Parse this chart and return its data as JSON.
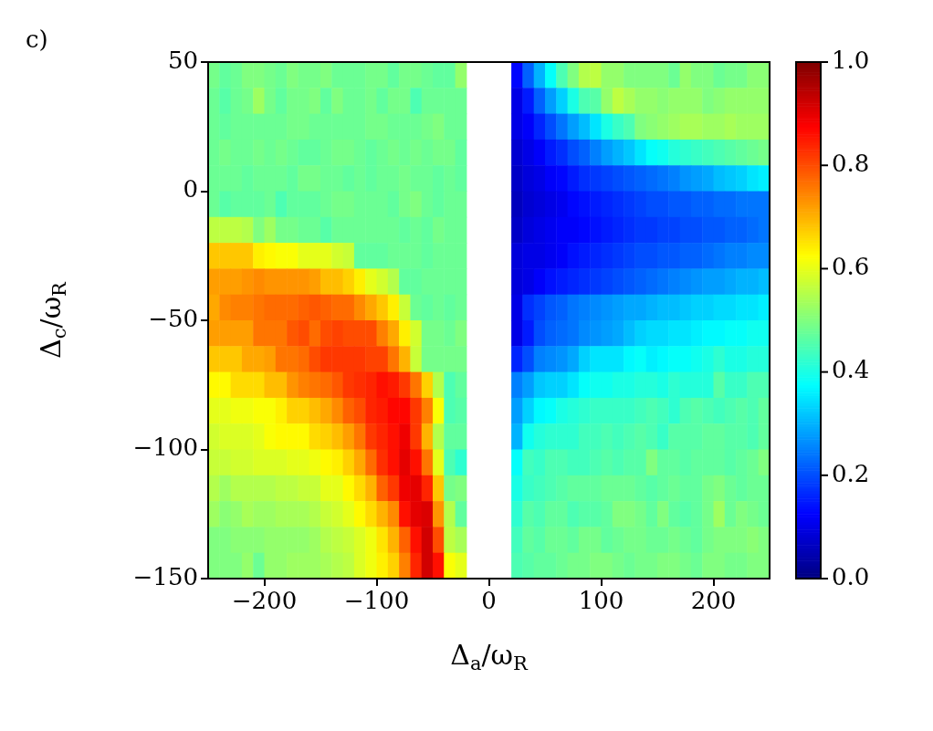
{
  "chart_data": {
    "type": "heatmap",
    "annotations": [
      "c)"
    ],
    "xlabel": "Δ$_{a}$/ω$_{R}$",
    "ylabel": "Δ$_{c}$/ω$_{R}$",
    "x": [
      -245,
      -235,
      -225,
      -215,
      -205,
      -195,
      -185,
      -175,
      -165,
      -155,
      -145,
      -135,
      -125,
      -115,
      -105,
      -95,
      -85,
      -75,
      -65,
      -55,
      -45,
      -35,
      -25,
      -15,
      -5,
      5,
      15,
      25,
      35,
      45,
      55,
      65,
      75,
      85,
      95,
      105,
      115,
      125,
      135,
      145,
      155,
      165,
      175,
      185,
      195,
      205,
      215,
      225,
      235,
      245
    ],
    "y": [
      45,
      35,
      25,
      15,
      5,
      -5,
      -15,
      -25,
      -35,
      -45,
      -55,
      -65,
      -75,
      -85,
      -95,
      -105,
      -115,
      -125,
      -135,
      -145
    ],
    "xlim": [
      -250,
      250
    ],
    "ylim": [
      -150,
      50
    ],
    "xticks": [
      {
        "value": -200,
        "label": "−200"
      },
      {
        "value": -100,
        "label": "−100"
      },
      0,
      100,
      200
    ],
    "yticks": [
      {
        "value": -150,
        "label": "−150"
      },
      {
        "value": -100,
        "label": "−100"
      },
      {
        "value": -50,
        "label": "−50"
      },
      0,
      50
    ],
    "clim": [
      0,
      1
    ],
    "cticks": [
      {
        "value": 0,
        "label": "0.0"
      },
      0.2,
      0.4,
      0.6,
      0.8,
      {
        "value": 1,
        "label": "1.0"
      }
    ],
    "cells": [
      [
        0.49,
        0.47,
        0.48,
        0.5,
        0.5,
        0.49,
        0.48,
        0.5,
        0.49,
        0.49,
        0.5,
        0.48,
        0.48,
        0.48,
        0.49,
        0.49,
        0.47,
        0.49,
        0.49,
        0.48,
        0.47,
        0.47,
        0.52,
        null,
        null,
        null,
        null,
        0.13,
        0.22,
        0.3,
        0.38,
        0.45,
        0.5,
        0.55,
        0.56,
        0.52,
        0.52,
        0.5,
        0.5,
        0.5,
        0.5,
        0.48,
        0.52,
        0.5,
        0.5,
        0.48,
        0.49,
        0.49,
        0.51,
        0.51
      ],
      [
        0.48,
        0.46,
        0.48,
        0.49,
        0.53,
        0.49,
        0.47,
        0.49,
        0.49,
        0.5,
        0.47,
        0.5,
        0.48,
        0.48,
        0.49,
        0.47,
        0.49,
        0.49,
        0.45,
        0.48,
        0.48,
        0.48,
        0.48,
        null,
        null,
        null,
        null,
        0.1,
        0.15,
        0.22,
        0.28,
        0.33,
        0.4,
        0.45,
        0.46,
        0.52,
        0.56,
        0.54,
        0.52,
        0.52,
        0.51,
        0.52,
        0.52,
        0.52,
        0.5,
        0.51,
        0.52,
        0.52,
        0.52,
        0.52
      ],
      [
        0.48,
        0.47,
        0.48,
        0.48,
        0.48,
        0.48,
        0.48,
        0.49,
        0.49,
        0.48,
        0.48,
        0.48,
        0.48,
        0.48,
        0.49,
        0.49,
        0.48,
        0.48,
        0.48,
        0.49,
        0.5,
        0.48,
        0.48,
        null,
        null,
        null,
        null,
        0.1,
        0.12,
        0.16,
        0.2,
        0.24,
        0.28,
        0.31,
        0.35,
        0.4,
        0.43,
        0.45,
        0.5,
        0.51,
        0.52,
        0.53,
        0.54,
        0.54,
        0.53,
        0.53,
        0.54,
        0.53,
        0.53,
        0.53
      ],
      [
        0.48,
        0.49,
        0.48,
        0.48,
        0.49,
        0.48,
        0.49,
        0.48,
        0.47,
        0.47,
        0.48,
        0.49,
        0.49,
        0.48,
        0.47,
        0.48,
        0.49,
        0.48,
        0.49,
        0.48,
        0.49,
        0.49,
        0.47,
        null,
        null,
        null,
        null,
        0.08,
        0.1,
        0.12,
        0.15,
        0.17,
        0.2,
        0.22,
        0.25,
        0.28,
        0.3,
        0.32,
        0.35,
        0.38,
        0.39,
        0.41,
        0.42,
        0.43,
        0.44,
        0.45,
        0.46,
        0.47,
        0.48,
        0.49
      ],
      [
        0.48,
        0.48,
        0.48,
        0.47,
        0.48,
        0.48,
        0.48,
        0.47,
        0.49,
        0.49,
        0.48,
        0.48,
        0.47,
        0.48,
        0.47,
        0.48,
        0.48,
        0.49,
        0.48,
        0.48,
        0.47,
        0.48,
        0.47,
        null,
        null,
        null,
        null,
        0.07,
        0.09,
        0.1,
        0.12,
        0.13,
        0.15,
        0.17,
        0.18,
        0.19,
        0.2,
        0.21,
        0.22,
        0.23,
        0.24,
        0.25,
        0.27,
        0.28,
        0.29,
        0.31,
        0.32,
        0.33,
        0.35,
        0.36
      ],
      [
        0.48,
        0.46,
        0.47,
        0.47,
        0.47,
        0.48,
        0.45,
        0.47,
        0.47,
        0.47,
        0.48,
        0.49,
        0.49,
        0.48,
        0.48,
        0.48,
        0.47,
        0.49,
        0.5,
        0.48,
        0.47,
        0.48,
        0.48,
        null,
        null,
        null,
        null,
        0.06,
        0.08,
        0.09,
        0.1,
        0.11,
        0.13,
        0.14,
        0.15,
        0.16,
        0.17,
        0.18,
        0.19,
        0.2,
        0.2,
        0.21,
        0.21,
        0.22,
        0.22,
        0.23,
        0.23,
        0.24,
        0.24,
        0.24
      ],
      [
        0.56,
        0.56,
        0.56,
        0.55,
        0.5,
        0.53,
        0.49,
        0.49,
        0.48,
        0.48,
        0.46,
        0.48,
        0.48,
        0.48,
        0.48,
        0.48,
        0.48,
        0.47,
        0.48,
        0.47,
        0.49,
        0.48,
        0.48,
        null,
        null,
        null,
        null,
        0.07,
        0.09,
        0.1,
        0.11,
        0.12,
        0.12,
        0.13,
        0.14,
        0.15,
        0.16,
        0.17,
        0.18,
        0.18,
        0.19,
        0.19,
        0.2,
        0.2,
        0.21,
        0.21,
        0.22,
        0.22,
        0.23,
        0.24
      ],
      [
        0.68,
        0.68,
        0.68,
        0.68,
        0.64,
        0.63,
        0.62,
        0.62,
        0.6,
        0.6,
        0.6,
        0.58,
        0.57,
        0.47,
        0.47,
        0.47,
        0.48,
        0.48,
        0.48,
        0.47,
        0.48,
        0.48,
        0.48,
        null,
        null,
        null,
        null,
        0.09,
        0.1,
        0.1,
        0.11,
        0.12,
        0.14,
        0.15,
        0.16,
        0.17,
        0.18,
        0.19,
        0.2,
        0.2,
        0.21,
        0.21,
        0.22,
        0.22,
        0.23,
        0.24,
        0.25,
        0.25,
        0.26,
        0.26
      ],
      [
        0.72,
        0.72,
        0.72,
        0.73,
        0.74,
        0.73,
        0.73,
        0.73,
        0.73,
        0.72,
        0.69,
        0.69,
        0.67,
        0.64,
        0.6,
        0.58,
        0.55,
        0.47,
        0.47,
        0.48,
        0.48,
        0.48,
        0.48,
        null,
        null,
        null,
        null,
        0.09,
        0.1,
        0.12,
        0.14,
        0.15,
        0.16,
        0.17,
        0.18,
        0.19,
        0.2,
        0.21,
        0.22,
        0.23,
        0.24,
        0.25,
        0.26,
        0.27,
        0.28,
        0.28,
        0.29,
        0.3,
        0.3,
        0.31
      ],
      [
        0.71,
        0.74,
        0.75,
        0.75,
        0.76,
        0.77,
        0.77,
        0.77,
        0.78,
        0.79,
        0.78,
        0.77,
        0.77,
        0.74,
        0.71,
        0.68,
        0.64,
        0.57,
        0.48,
        0.47,
        0.48,
        0.47,
        0.48,
        null,
        null,
        null,
        null,
        0.1,
        0.17,
        0.19,
        0.21,
        0.22,
        0.24,
        0.25,
        0.26,
        0.27,
        0.28,
        0.29,
        0.29,
        0.3,
        0.31,
        0.31,
        0.32,
        0.33,
        0.33,
        0.34,
        0.34,
        0.35,
        0.35,
        0.36
      ],
      [
        0.72,
        0.72,
        0.72,
        0.72,
        0.76,
        0.76,
        0.76,
        0.79,
        0.8,
        0.77,
        0.8,
        0.81,
        0.8,
        0.8,
        0.8,
        0.75,
        0.71,
        0.64,
        0.58,
        0.49,
        0.49,
        0.48,
        0.5,
        null,
        null,
        null,
        null,
        0.1,
        0.15,
        0.2,
        0.22,
        0.23,
        0.24,
        0.26,
        0.27,
        0.28,
        0.29,
        0.31,
        0.33,
        0.34,
        0.34,
        0.35,
        0.35,
        0.36,
        0.37,
        0.37,
        0.38,
        0.38,
        0.39,
        0.39
      ],
      [
        0.68,
        0.68,
        0.68,
        0.71,
        0.71,
        0.72,
        0.76,
        0.76,
        0.77,
        0.8,
        0.82,
        0.82,
        0.82,
        0.82,
        0.81,
        0.81,
        0.76,
        0.7,
        0.57,
        0.49,
        0.49,
        0.49,
        0.49,
        null,
        null,
        null,
        null,
        0.16,
        0.2,
        0.25,
        0.26,
        0.27,
        0.29,
        0.33,
        0.35,
        0.35,
        0.35,
        0.37,
        0.38,
        0.36,
        0.37,
        0.38,
        0.38,
        0.39,
        0.4,
        0.42,
        0.4,
        0.4,
        0.41,
        0.41
      ],
      [
        0.63,
        0.63,
        0.66,
        0.66,
        0.66,
        0.69,
        0.69,
        0.73,
        0.75,
        0.76,
        0.77,
        0.79,
        0.82,
        0.83,
        0.84,
        0.86,
        0.85,
        0.82,
        0.76,
        0.67,
        0.55,
        0.45,
        0.47,
        null,
        null,
        null,
        null,
        0.25,
        0.28,
        0.32,
        0.33,
        0.33,
        0.35,
        0.38,
        0.39,
        0.39,
        0.4,
        0.4,
        0.41,
        0.41,
        0.4,
        0.42,
        0.41,
        0.41,
        0.41,
        0.46,
        0.43,
        0.43,
        0.45,
        0.45
      ],
      [
        0.6,
        0.6,
        0.61,
        0.61,
        0.62,
        0.62,
        0.64,
        0.67,
        0.67,
        0.69,
        0.71,
        0.74,
        0.78,
        0.8,
        0.84,
        0.85,
        0.87,
        0.87,
        0.82,
        0.75,
        0.62,
        0.45,
        0.46,
        null,
        null,
        null,
        null,
        0.28,
        0.33,
        0.37,
        0.38,
        0.4,
        0.41,
        0.42,
        0.43,
        0.43,
        0.43,
        0.43,
        0.44,
        0.45,
        0.44,
        0.42,
        0.45,
        0.46,
        0.45,
        0.44,
        0.45,
        0.46,
        0.45,
        0.47
      ],
      [
        0.58,
        0.59,
        0.59,
        0.59,
        0.6,
        0.62,
        0.63,
        0.63,
        0.63,
        0.66,
        0.67,
        0.69,
        0.72,
        0.76,
        0.82,
        0.84,
        0.86,
        0.89,
        0.82,
        0.7,
        0.55,
        0.47,
        0.47,
        null,
        null,
        null,
        null,
        0.3,
        0.39,
        0.41,
        0.42,
        0.42,
        0.42,
        0.44,
        0.44,
        0.45,
        0.44,
        0.45,
        0.46,
        0.45,
        0.43,
        0.46,
        0.46,
        0.46,
        0.47,
        0.47,
        0.46,
        0.46,
        0.45,
        0.47
      ],
      [
        0.57,
        0.57,
        0.58,
        0.58,
        0.59,
        0.59,
        0.59,
        0.6,
        0.6,
        0.61,
        0.63,
        0.64,
        0.67,
        0.71,
        0.77,
        0.83,
        0.86,
        0.9,
        0.86,
        0.76,
        0.6,
        0.45,
        0.42,
        null,
        null,
        null,
        null,
        0.38,
        0.44,
        0.43,
        0.45,
        0.45,
        0.44,
        0.44,
        0.45,
        0.46,
        0.45,
        0.46,
        0.46,
        0.5,
        0.47,
        0.47,
        0.46,
        0.47,
        0.47,
        0.47,
        0.46,
        0.47,
        0.48,
        0.5
      ],
      [
        0.55,
        0.53,
        0.55,
        0.55,
        0.55,
        0.55,
        0.56,
        0.56,
        0.57,
        0.57,
        0.6,
        0.6,
        0.63,
        0.66,
        0.7,
        0.78,
        0.82,
        0.89,
        0.9,
        0.84,
        0.68,
        0.49,
        0.5,
        null,
        null,
        null,
        null,
        0.4,
        0.43,
        0.44,
        0.45,
        0.46,
        0.47,
        0.47,
        0.47,
        0.48,
        0.48,
        0.48,
        0.47,
        0.46,
        0.47,
        0.48,
        0.47,
        0.47,
        0.49,
        0.5,
        0.48,
        0.47,
        0.48,
        0.48
      ],
      [
        0.53,
        0.51,
        0.52,
        0.54,
        0.53,
        0.53,
        0.54,
        0.54,
        0.54,
        0.55,
        0.57,
        0.58,
        0.6,
        0.63,
        0.66,
        0.7,
        0.74,
        0.86,
        0.9,
        0.91,
        0.73,
        0.55,
        0.47,
        null,
        null,
        null,
        null,
        0.42,
        0.46,
        0.45,
        0.47,
        0.47,
        0.45,
        0.46,
        0.46,
        0.47,
        0.5,
        0.5,
        0.49,
        0.47,
        0.5,
        0.47,
        0.46,
        0.47,
        0.49,
        0.53,
        0.48,
        0.5,
        0.49,
        0.48
      ],
      [
        0.5,
        0.5,
        0.51,
        0.51,
        0.51,
        0.52,
        0.52,
        0.52,
        0.52,
        0.53,
        0.55,
        0.56,
        0.57,
        0.59,
        0.61,
        0.65,
        0.7,
        0.78,
        0.86,
        0.92,
        0.8,
        0.56,
        0.54,
        null,
        null,
        null,
        null,
        0.44,
        0.47,
        0.46,
        0.48,
        0.48,
        0.47,
        0.49,
        0.49,
        0.47,
        0.48,
        0.49,
        0.49,
        0.48,
        0.48,
        0.49,
        0.48,
        0.47,
        0.49,
        0.5,
        0.5,
        0.5,
        0.51,
        0.5
      ],
      [
        0.5,
        0.5,
        0.5,
        0.52,
        0.48,
        0.52,
        0.52,
        0.53,
        0.53,
        0.53,
        0.54,
        0.55,
        0.56,
        0.59,
        0.61,
        0.64,
        0.67,
        0.75,
        0.84,
        0.92,
        0.86,
        0.62,
        0.6,
        null,
        null,
        null,
        null,
        0.45,
        0.46,
        0.47,
        0.47,
        0.48,
        0.49,
        0.49,
        0.5,
        0.5,
        0.49,
        0.48,
        0.49,
        0.49,
        0.5,
        0.5,
        0.49,
        0.48,
        0.5,
        0.5,
        0.49,
        0.49,
        0.5,
        0.5
      ]
    ]
  }
}
